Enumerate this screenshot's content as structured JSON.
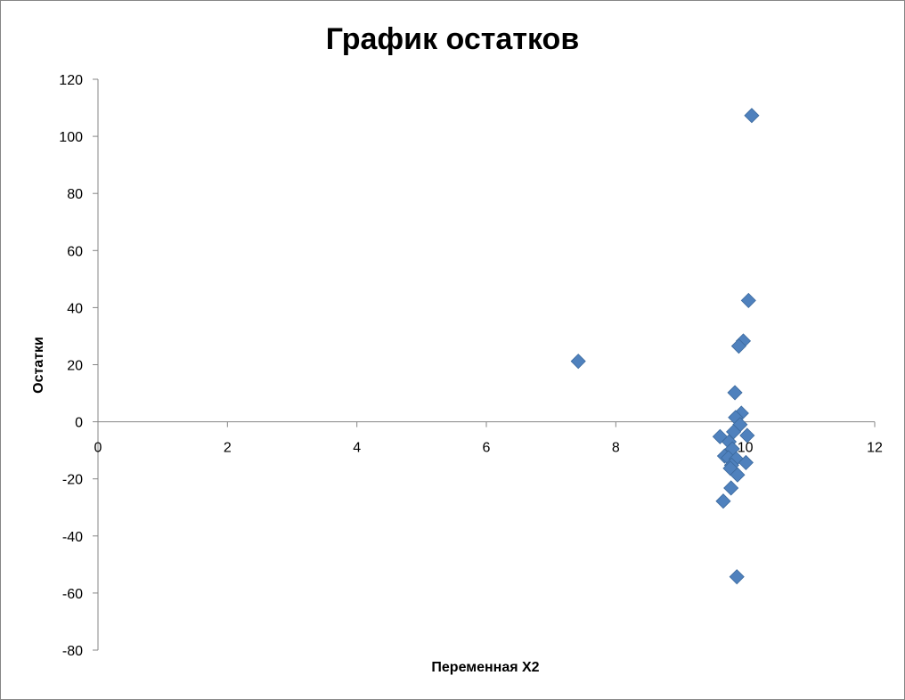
{
  "chart_data": {
    "type": "scatter",
    "title": "График остатков",
    "xlabel": "Переменная X2",
    "ylabel": "Остатки",
    "xlim": [
      0,
      12
    ],
    "ylim": [
      -80,
      120
    ],
    "x_ticks": [
      0,
      2,
      4,
      6,
      8,
      10,
      12
    ],
    "y_ticks": [
      -80,
      -60,
      -40,
      -20,
      0,
      20,
      40,
      60,
      80,
      100,
      120
    ],
    "grid": false,
    "legend": "none",
    "marker": "diamond",
    "marker_color": "#4F81BD",
    "axis_color": "#868686",
    "series": [
      {
        "points": [
          {
            "x": 7.42,
            "y": 21.2
          },
          {
            "x": 10.1,
            "y": 107.3
          },
          {
            "x": 10.05,
            "y": 42.5
          },
          {
            "x": 9.97,
            "y": 28.3
          },
          {
            "x": 9.9,
            "y": 26.5
          },
          {
            "x": 9.84,
            "y": 10.2
          },
          {
            "x": 9.94,
            "y": 3.0
          },
          {
            "x": 9.85,
            "y": 1.5
          },
          {
            "x": 9.92,
            "y": -1.0
          },
          {
            "x": 9.82,
            "y": -3.5
          },
          {
            "x": 10.03,
            "y": -4.8
          },
          {
            "x": 9.61,
            "y": -5.2
          },
          {
            "x": 9.75,
            "y": -7.0
          },
          {
            "x": 9.8,
            "y": -9.5
          },
          {
            "x": 9.68,
            "y": -12.0
          },
          {
            "x": 9.74,
            "y": -12.6
          },
          {
            "x": 9.86,
            "y": -13.0
          },
          {
            "x": 10.01,
            "y": -14.3
          },
          {
            "x": 9.79,
            "y": -15.2
          },
          {
            "x": 9.77,
            "y": -16.3
          },
          {
            "x": 9.88,
            "y": -18.6
          },
          {
            "x": 9.78,
            "y": -23.2
          },
          {
            "x": 9.66,
            "y": -27.8
          },
          {
            "x": 9.87,
            "y": -54.3
          }
        ]
      }
    ]
  }
}
